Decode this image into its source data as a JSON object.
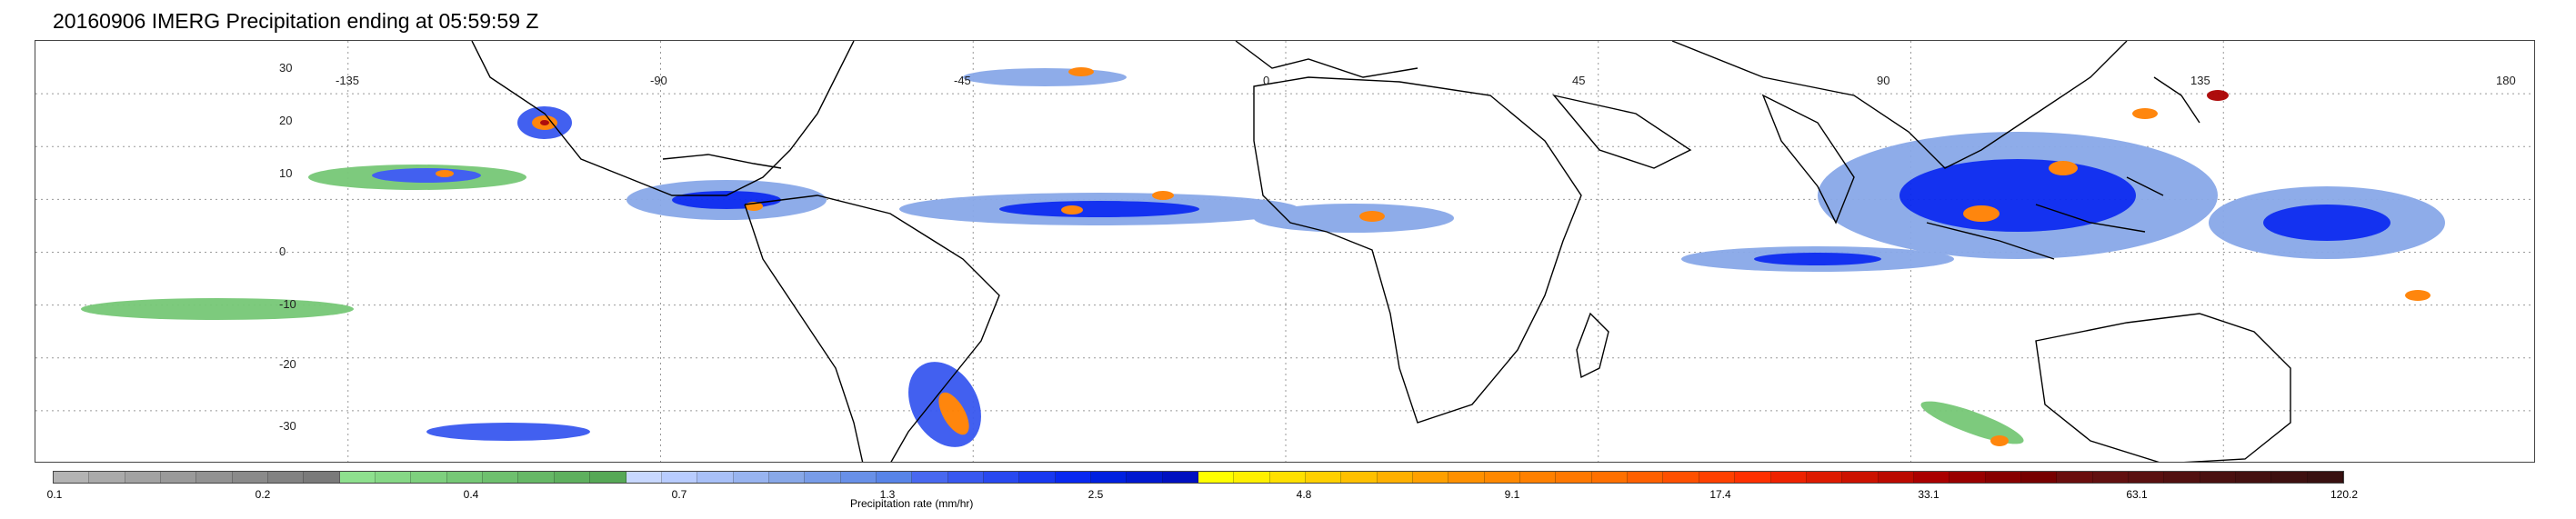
{
  "title": "20160906 IMERG Precipitation ending at 05:59:59 Z",
  "map": {
    "projection": "equirectangular",
    "lon_range": [
      -180,
      180
    ],
    "lat_range": [
      -40,
      40
    ],
    "lat_labels": [
      "30",
      "20",
      "10",
      "0",
      "-10",
      "-20",
      "-30"
    ],
    "lon_labels": [
      "-135",
      "-90",
      "-45",
      "0",
      "45",
      "90",
      "135",
      "180"
    ],
    "gridlines": "dotted",
    "coastline_color": "#000000"
  },
  "colorbar": {
    "label": "Precipitation rate (mm/hr)",
    "tick_labels": [
      "0.1",
      "0.2",
      "0.4",
      "0.7",
      "1.3",
      "2.5",
      "4.8",
      "9.1",
      "17.4",
      "33.1",
      "63.1",
      "120.2"
    ],
    "colors": [
      "#b3b3b3",
      "#aaaaaa",
      "#a2a2a2",
      "#9a9a9a",
      "#929292",
      "#8a8a8a",
      "#828282",
      "#7a7a7a",
      "#8ee08e",
      "#86d886",
      "#7ed07e",
      "#76c876",
      "#6ec06e",
      "#66b866",
      "#5eb05e",
      "#56a856",
      "#c8d8ff",
      "#b8ccff",
      "#a8c0f8",
      "#98b4f0",
      "#88a8e8",
      "#789ce8",
      "#6890e8",
      "#5884e8",
      "#4868f0",
      "#3858f0",
      "#2848f0",
      "#1838f0",
      "#0828f0",
      "#0020e0",
      "#0018d0",
      "#0010c0",
      "#ffff00",
      "#fff000",
      "#ffe000",
      "#ffd000",
      "#ffc000",
      "#ffb000",
      "#ffa000",
      "#ff9000",
      "#ff8800",
      "#ff8000",
      "#ff7800",
      "#ff7000",
      "#ff6000",
      "#ff5000",
      "#ff4000",
      "#ff3000",
      "#ee2200",
      "#dd1a00",
      "#cc1200",
      "#bb0a00",
      "#aa0000",
      "#990000",
      "#880000",
      "#770000",
      "#6a0e0e",
      "#621010",
      "#5a1010",
      "#521010",
      "#4a1010",
      "#441010",
      "#3e1010",
      "#381010"
    ]
  }
}
